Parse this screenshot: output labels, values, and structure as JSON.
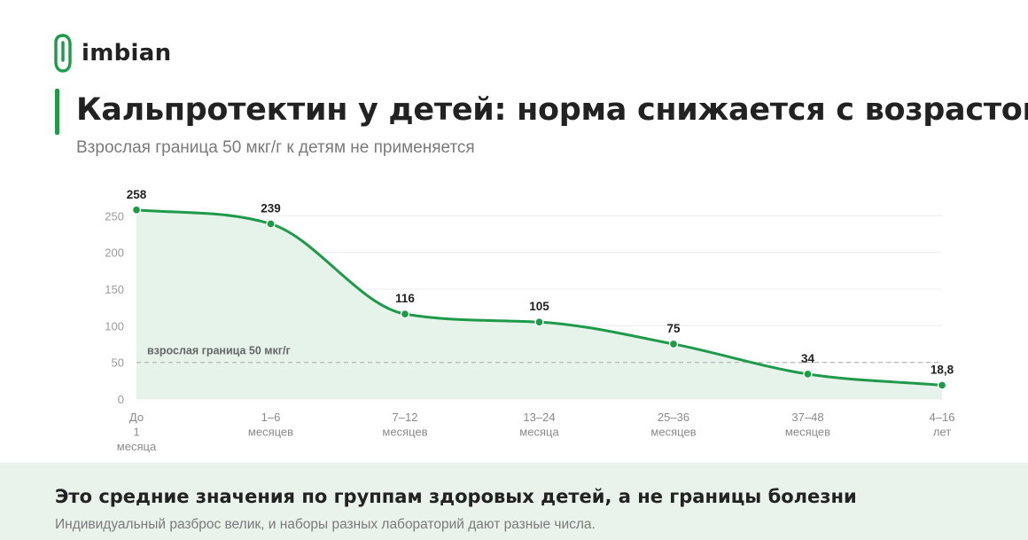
{
  "brand": {
    "name": "imbian",
    "logo_icon": "paperclip-logo-icon",
    "color": "#1f9a4a"
  },
  "header": {
    "title": "Кальпротектин у детей: норма снижается с возрастом",
    "subtitle": "Взрослая граница 50 мкг/г к детям не применяется"
  },
  "chart_data": {
    "type": "area",
    "categories": [
      [
        "До",
        "1",
        "месяца"
      ],
      [
        "1–6",
        "месяцев"
      ],
      [
        "7–12",
        "месяцев"
      ],
      [
        "13–24",
        "месяца"
      ],
      [
        "25–36",
        "месяцев"
      ],
      [
        "37–48",
        "месяцев"
      ],
      [
        "4–16",
        "лет"
      ]
    ],
    "values": [
      258,
      239,
      116,
      105,
      75,
      34,
      18.8
    ],
    "value_labels": [
      "258",
      "239",
      "116",
      "105",
      "75",
      "34",
      "18,8"
    ],
    "ylim": [
      0,
      250
    ],
    "yticks": [
      0,
      50,
      100,
      150,
      200,
      250
    ],
    "grid": true,
    "reference_line": {
      "value": 50,
      "label": "взрослая граница 50 мкг/г"
    },
    "colors": {
      "line": "#1f9a4a",
      "fill": "#e6f3ea",
      "grid": "#ececec",
      "reference": "#bdbdbd"
    }
  },
  "footer": {
    "title": "Это средние значения по группам здоровых детей, а не границы болезни",
    "text": "Индивидуальный разброс велик, и наборы разных лабораторий дают разные числа.",
    "background": "#e9f3ec"
  }
}
